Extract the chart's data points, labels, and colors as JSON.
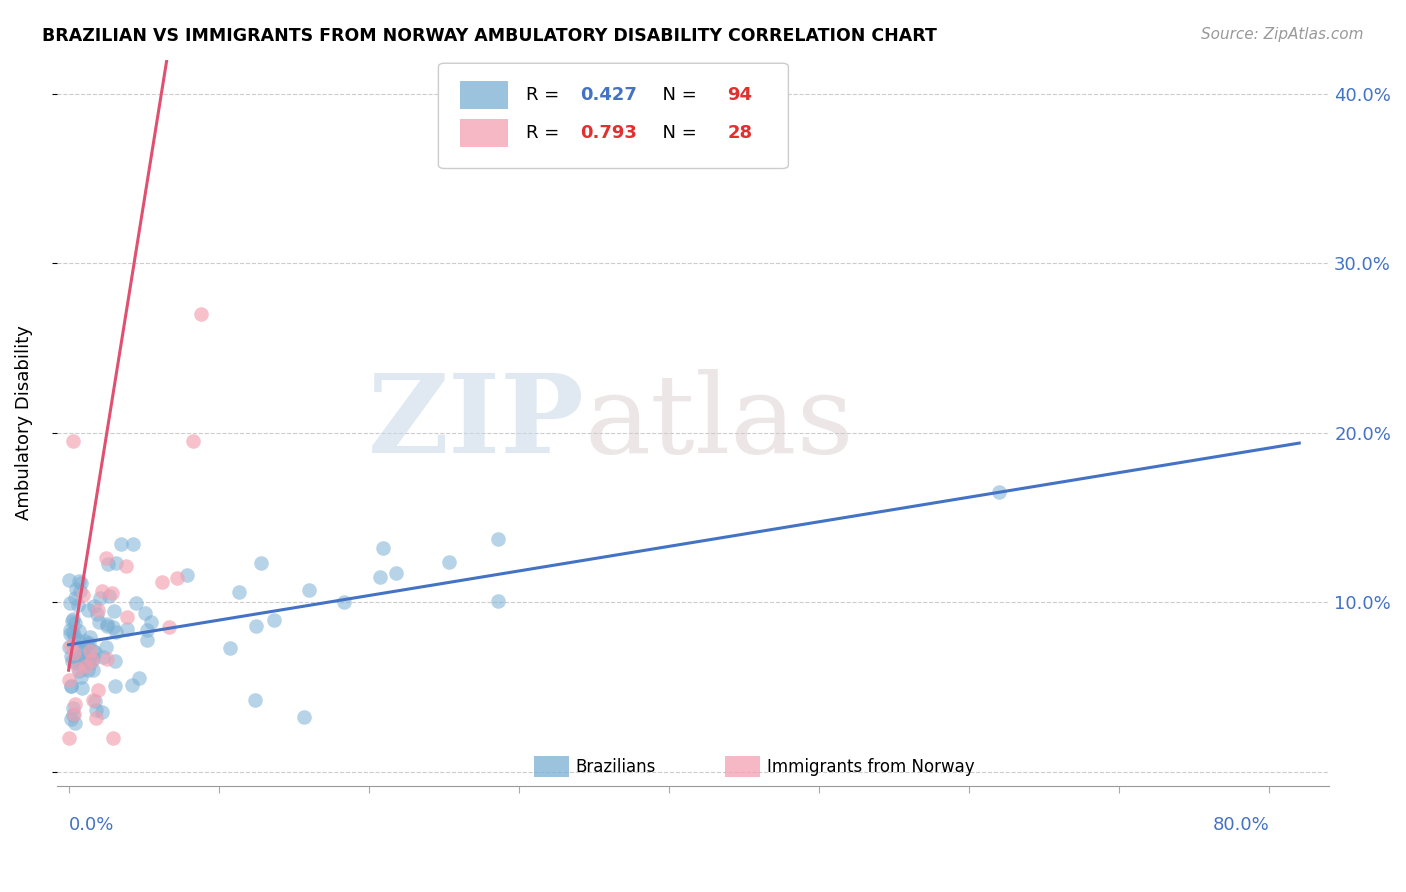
{
  "title": "BRAZILIAN VS IMMIGRANTS FROM NORWAY AMBULATORY DISABILITY CORRELATION CHART",
  "source": "Source: ZipAtlas.com",
  "ylabel": "Ambulatory Disability",
  "yticks": [
    0.0,
    0.1,
    0.2,
    0.3,
    0.4
  ],
  "ytick_labels": [
    "",
    "10.0%",
    "20.0%",
    "30.0%",
    "40.0%"
  ],
  "xticks": [
    0.0,
    0.1,
    0.2,
    0.3,
    0.4,
    0.5,
    0.6,
    0.7,
    0.8
  ],
  "xmin": -0.008,
  "xmax": 0.84,
  "ymin": -0.008,
  "ymax": 0.42,
  "brazil_R": 0.427,
  "brazil_N": 94,
  "norway_R": 0.793,
  "norway_N": 28,
  "brazil_color": "#7BAFD4",
  "norway_color": "#F4A0B0",
  "brazil_line_color": "#4472C4",
  "norway_line_color": "#E05070",
  "legend_label_brazil": "Brazilians",
  "legend_label_norway": "Immigrants from Norway",
  "watermark_zip": "ZIP",
  "watermark_atlas": "atlas",
  "brazil_intercept": 0.075,
  "brazil_slope": 0.145,
  "norway_intercept": 0.06,
  "norway_slope": 5.5
}
